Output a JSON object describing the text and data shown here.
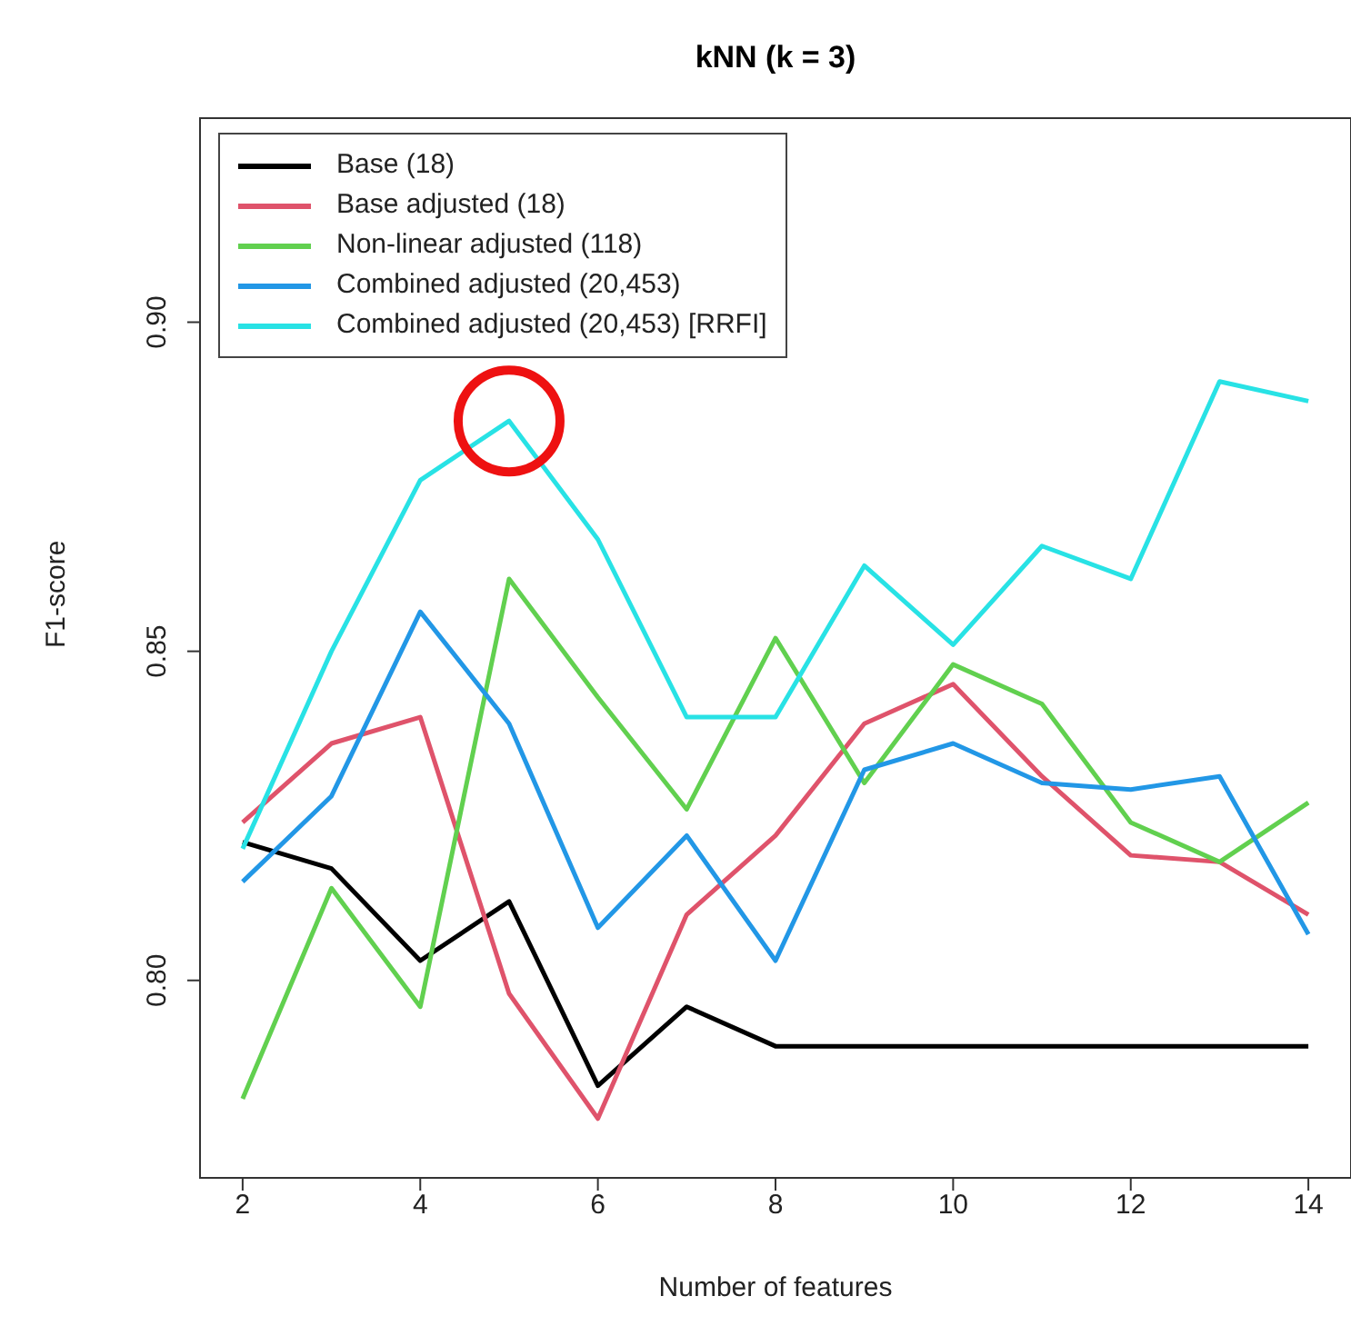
{
  "chart_data": {
    "type": "line",
    "title": "kNN (k = 3)",
    "xlabel": "Number of features",
    "ylabel": "F1-score",
    "x": [
      2,
      3,
      4,
      5,
      6,
      7,
      8,
      9,
      10,
      11,
      12,
      13,
      14
    ],
    "series": [
      {
        "name": "Base (18)",
        "color": "#000000",
        "values": [
          0.821,
          0.817,
          0.803,
          0.812,
          0.784,
          0.796,
          0.79,
          0.79,
          0.79,
          0.79,
          0.79,
          0.79,
          0.79
        ]
      },
      {
        "name": "Base adjusted (18)",
        "color": "#df536b",
        "values": [
          0.824,
          0.836,
          0.84,
          0.798,
          0.779,
          0.81,
          0.822,
          0.839,
          0.845,
          0.831,
          0.819,
          0.818,
          0.81
        ]
      },
      {
        "name": "Non-linear adjusted (118)",
        "color": "#61d04f",
        "values": [
          0.782,
          0.814,
          0.796,
          0.861,
          0.843,
          0.826,
          0.852,
          0.83,
          0.848,
          0.842,
          0.824,
          0.818,
          0.827
        ]
      },
      {
        "name": "Combined adjusted (20,453)",
        "color": "#2297e6",
        "values": [
          0.815,
          0.828,
          0.856,
          0.839,
          0.808,
          0.822,
          0.803,
          0.832,
          0.836,
          0.83,
          0.829,
          0.831,
          0.807
        ]
      },
      {
        "name": "Combined adjusted (20,453) [RRFI]",
        "color": "#28e2e5",
        "values": [
          0.82,
          0.85,
          0.876,
          0.885,
          0.867,
          0.84,
          0.84,
          0.863,
          0.851,
          0.866,
          0.861,
          0.891,
          0.888
        ]
      }
    ],
    "xlim": [
      1.52,
      14.48
    ],
    "xticks": [
      2,
      4,
      6,
      8,
      10,
      12,
      14
    ],
    "ylim": [
      0.77,
      0.931
    ],
    "yticks": [
      {
        "value": 0.8,
        "label": "0.80"
      },
      {
        "value": 0.85,
        "label": "0.85"
      },
      {
        "value": 0.9,
        "label": "0.90"
      }
    ],
    "legend": "top left",
    "grid": false,
    "marker": "none",
    "line_style": "solid"
  }
}
